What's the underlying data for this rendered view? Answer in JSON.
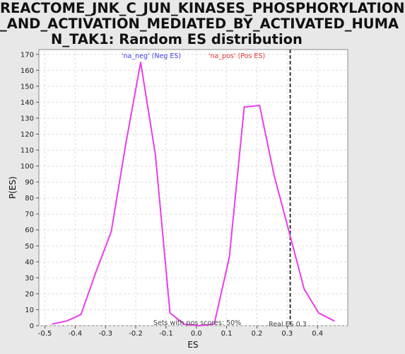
{
  "title_lines": [
    "REACTOME_JNK_C_JUN_KINASES_PHOSPHORYLATION",
    "_AND_ACTIVATION_MEDIATED_BY_ACTIVATED_HUMA",
    "N_TAK1: Random ES distribution"
  ],
  "colors": {
    "line": "#e83ee8",
    "neg_label": "#3d3de8",
    "pos_label": "#e83030",
    "grid": "#dddddd",
    "real_es_line": "#333333",
    "background": "#e8e8e8",
    "plot_bg": "#ffffff"
  },
  "annotations": {
    "neg_label": "'na_neg' (Neg ES)",
    "pos_label": "'na_pos' (Pos ES)",
    "pos_scores": "Sets with pos scores: 50%",
    "real_es": "Real ES 0.3"
  },
  "chart_data": {
    "type": "line",
    "title": "REACTOME_JNK_C_JUN_KINASES_PHOSPHORYLATION_AND_ACTIVATION_MEDIATED_BY_ACTIVATED_HUMAN_TAK1: Random ES distribution",
    "xlabel": "ES",
    "ylabel": "P(ES)",
    "xlim": [
      -0.52,
      0.5
    ],
    "ylim": [
      0,
      173
    ],
    "xticks": [
      -0.5,
      -0.4,
      -0.3,
      -0.2,
      -0.1,
      0.0,
      0.1,
      0.2,
      0.3,
      0.4
    ],
    "xtick_labels": [
      "-0.5",
      "-0.4",
      "-0.3",
      "-0.2",
      "-0.1",
      "0.0",
      "0.1",
      "0.2",
      "0.3",
      "0.4"
    ],
    "yticks": [
      0,
      10,
      20,
      30,
      40,
      50,
      60,
      70,
      80,
      90,
      100,
      110,
      120,
      130,
      140,
      150,
      160,
      170
    ],
    "grid": true,
    "series": [
      {
        "x": [
          -0.476,
          -0.427,
          -0.381,
          -0.331,
          -0.281,
          -0.232,
          -0.184,
          -0.135,
          -0.087,
          -0.041,
          0.008,
          0.059,
          0.109,
          0.158,
          0.209,
          0.257,
          0.306,
          0.356,
          0.404,
          0.455
        ],
        "y": [
          1,
          3,
          7,
          34,
          59,
          115,
          165,
          107,
          8,
          1,
          0,
          1,
          43,
          137,
          138,
          94,
          59,
          23,
          8,
          3
        ]
      }
    ],
    "real_es": 0.31
  }
}
